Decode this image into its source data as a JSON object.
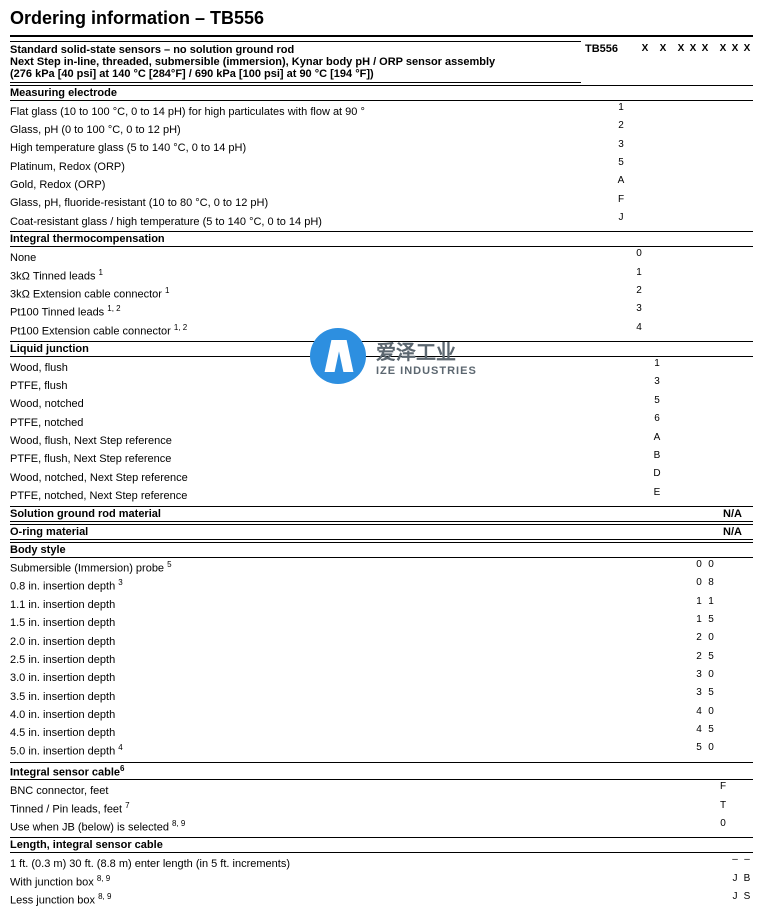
{
  "title": "Ordering information – TB556",
  "modelCode": "TB556",
  "codeCols": [
    "X",
    "X",
    "X",
    "X",
    "X",
    "X",
    "X",
    "X"
  ],
  "headerLines": [
    "Standard solid-state sensors – no solution ground rod",
    "Next Step in-line, threaded, submersible (immersion), Kynar body pH / ORP sensor assembly",
    "(276 kPa [40 psi] at 140 °C [284°F] / 690 kPa [100 psi] at 90 °C [194 °F])"
  ],
  "watermark": {
    "cn": "爱泽工业",
    "en": "IZE INDUSTRIES"
  },
  "sections": [
    {
      "name": "Measuring electrode",
      "col": 0,
      "rows": [
        {
          "label": "Flat glass (10 to 100 °C, 0 to 14 pH) for high particulates with flow at 90 °",
          "code": "1"
        },
        {
          "label": "Glass, pH (0 to 100 °C, 0 to 12 pH)",
          "code": "2"
        },
        {
          "label": "High temperature glass (5 to 140 °C, 0 to 14 pH)",
          "code": "3"
        },
        {
          "label": "Platinum, Redox (ORP)",
          "code": "5"
        },
        {
          "label": "Gold, Redox (ORP)",
          "code": "A"
        },
        {
          "label": "Glass, pH, fluoride-resistant (10 to 80 °C, 0 to 12 pH)",
          "code": "F"
        },
        {
          "label": "Coat-resistant glass / high temperature (5 to 140 °C, 0 to 14 pH)",
          "code": "J"
        }
      ]
    },
    {
      "name": "Integral thermocompensation",
      "col": 1,
      "rows": [
        {
          "label": "None",
          "code": "0"
        },
        {
          "label": "3kΩ Tinned leads",
          "sup": "1",
          "code": "1"
        },
        {
          "label": "3kΩ Extension cable connector",
          "sup": "1",
          "code": "2"
        },
        {
          "label": "Pt100 Tinned leads",
          "sup": "1, 2",
          "code": "3"
        },
        {
          "label": "Pt100 Extension cable connector",
          "sup": "1, 2",
          "code": "4"
        }
      ]
    },
    {
      "name": "Liquid junction",
      "col": 2,
      "rows": [
        {
          "label": "Wood, flush",
          "code": "1"
        },
        {
          "label": "PTFE, flush",
          "code": "3"
        },
        {
          "label": "Wood, notched",
          "code": "5"
        },
        {
          "label": "PTFE, notched",
          "code": "6"
        },
        {
          "label": "Wood, flush, Next Step reference",
          "code": "A"
        },
        {
          "label": "PTFE, flush, Next Step reference",
          "code": "B"
        },
        {
          "label": "Wood, notched, Next Step reference",
          "code": "D"
        },
        {
          "label": "PTFE, notched, Next Step reference",
          "code": "E"
        }
      ]
    },
    {
      "name": "Solution ground rod material",
      "na": "N/A",
      "col": 3,
      "rows": []
    },
    {
      "name": "O-ring material",
      "na": "N/A",
      "col": 4,
      "rows": []
    },
    {
      "name": "Body style",
      "col": 5,
      "twoCol": true,
      "rows": [
        {
          "label": "Submersible (Immersion) probe",
          "sup": "5",
          "code": "0",
          "code2": "0"
        },
        {
          "label": "0.8 in. insertion depth",
          "sup": "3",
          "code": "0",
          "code2": "8"
        },
        {
          "label": "1.1 in. insertion depth",
          "code": "1",
          "code2": "1"
        },
        {
          "label": "1.5 in. insertion depth",
          "code": "1",
          "code2": "5"
        },
        {
          "label": "2.0 in. insertion depth",
          "code": "2",
          "code2": "0"
        },
        {
          "label": "2.5 in. insertion depth",
          "code": "2",
          "code2": "5"
        },
        {
          "label": "3.0 in. insertion depth",
          "code": "3",
          "code2": "0"
        },
        {
          "label": "3.5 in. insertion depth",
          "code": "3",
          "code2": "5"
        },
        {
          "label": "4.0 in. insertion depth",
          "code": "4",
          "code2": "0"
        },
        {
          "label": "4.5 in. insertion depth",
          "code": "4",
          "code2": "5"
        },
        {
          "label": "5.0 in. insertion depth",
          "sup": "4",
          "code": "5",
          "code2": "0"
        }
      ]
    },
    {
      "name": "Integral sensor cable",
      "sup": "6",
      "col": 7,
      "rows": [
        {
          "label": "BNC connector, feet",
          "code": "F"
        },
        {
          "label": "Tinned / Pin leads, feet",
          "sup": "7",
          "code": "T"
        },
        {
          "label": "Use when JB (below) is selected",
          "sup": "8, 9",
          "code": "0"
        }
      ]
    },
    {
      "name": "Length, integral sensor cable",
      "col": 8,
      "twoCol": true,
      "rows": [
        {
          "label": "1 ft. (0.3 m) 30 ft. (8.8 m) enter length (in 5 ft. increments)",
          "code": "–",
          "code2": "–"
        },
        {
          "label": "With junction box",
          "sup": "8, 9",
          "code": "J",
          "code2": "B"
        },
        {
          "label": "Less junction box",
          "sup": "8, 9",
          "code": "J",
          "code2": "S"
        }
      ]
    }
  ]
}
